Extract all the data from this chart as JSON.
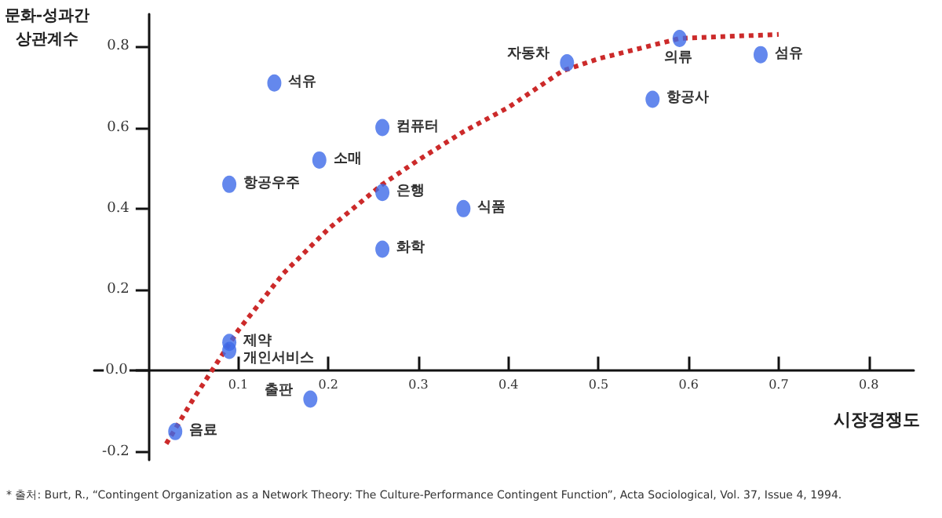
{
  "chart_data": {
    "type": "scatter",
    "xlabel": "시장경쟁도",
    "ylabel": "문화-성과간 상관계수",
    "xlim": [
      -0.06,
      0.85
    ],
    "ylim": [
      -0.22,
      0.88
    ],
    "xticks": [
      0.1,
      0.2,
      0.3,
      0.4,
      0.5,
      0.6,
      0.7,
      0.8
    ],
    "yticks": [
      -0.2,
      {
        "value": 0,
        "label": "0.0"
      },
      0.2,
      0.4,
      0.6,
      0.8
    ],
    "grid": false,
    "series": [
      {
        "color": "#3d6ae8",
        "marker": "circle",
        "x": [
          0.14,
          0.26,
          0.19,
          0.09,
          0.26,
          0.26,
          0.35,
          0.09,
          0.09,
          0.03,
          0.18,
          0.465,
          0.59,
          0.56,
          0.68
        ],
        "values": [
          0.71,
          0.6,
          0.52,
          0.46,
          0.44,
          0.3,
          0.4,
          0.07,
          0.05,
          -0.15,
          -0.07,
          0.76,
          0.82,
          0.67,
          0.78
        ]
      },
      {
        "type": "line",
        "color": "#cc2a2a",
        "marker": "none",
        "line_style": "dotted",
        "x": [
          0.02,
          0.05,
          0.1,
          0.15,
          0.2,
          0.26,
          0.3,
          0.35,
          0.4,
          0.46,
          0.5,
          0.59,
          0.7
        ],
        "values": [
          -0.18,
          -0.07,
          0.1,
          0.24,
          0.35,
          0.46,
          0.52,
          0.59,
          0.65,
          0.74,
          0.77,
          0.82,
          0.83
        ]
      }
    ],
    "annotations": [
      {
        "text": "석유",
        "x": 0.14,
        "y": 0.71
      },
      {
        "text": "컴퓨터",
        "x": 0.26,
        "y": 0.6
      },
      {
        "text": "소매",
        "x": 0.19,
        "y": 0.52
      },
      {
        "text": "항공우주",
        "x": 0.09,
        "y": 0.46
      },
      {
        "text": "은행",
        "x": 0.26,
        "y": 0.44
      },
      {
        "text": "화학",
        "x": 0.26,
        "y": 0.3
      },
      {
        "text": "식품",
        "x": 0.35,
        "y": 0.4
      },
      {
        "text": "제약",
        "x": 0.09,
        "y": 0.07
      },
      {
        "text": "개인서비스",
        "x": 0.09,
        "y": 0.05
      },
      {
        "text": "음료",
        "x": 0.03,
        "y": -0.15
      },
      {
        "text": "출판",
        "x": 0.18,
        "y": -0.07
      },
      {
        "text": "자동차",
        "x": 0.465,
        "y": 0.76
      },
      {
        "text": "의류",
        "x": 0.59,
        "y": 0.82
      },
      {
        "text": "항공사",
        "x": 0.56,
        "y": 0.67
      },
      {
        "text": "섬유",
        "x": 0.68,
        "y": 0.78
      },
      "* 출처: Burt, R., “Contingent Organization as a Network Theory: The Culture-Performance Contingent Function”, Acta Sociological, Vol. 37, Issue 4, 1994."
    ]
  }
}
